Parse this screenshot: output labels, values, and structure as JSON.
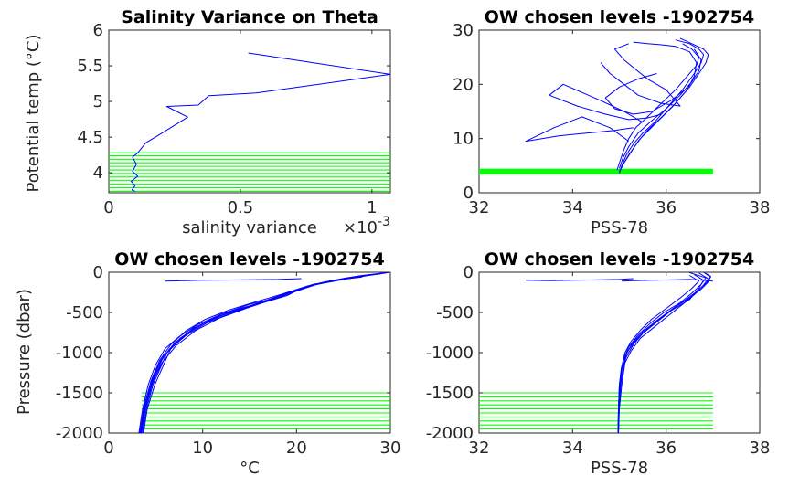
{
  "chart_data": [
    {
      "id": "p1",
      "type": "line",
      "title": "Salinity Variance on Theta",
      "xlabel": "salinity variance",
      "ylabel": "Potential temp (°C)",
      "x_exponent_label": "×10",
      "x_exponent": "-3",
      "xlim": [
        0,
        0.00107
      ],
      "ylim": [
        3.72,
        6
      ],
      "xticks": [
        0,
        0.0005,
        0.001
      ],
      "xticklabels": [
        "0",
        "0.5",
        "1"
      ],
      "yticks": [
        4,
        4.5,
        5,
        5.5,
        6
      ],
      "yticklabels": [
        "4",
        "4.5",
        "5",
        "5.5",
        "6"
      ],
      "series": [
        {
          "color": "#0000ff",
          "x": [
            0.00053,
            0.00107,
            0.00056,
            0.00038,
            0.00034,
            0.00022,
            0.0003,
            0.00019,
            0.00014,
            0.00011,
            9e-05,
            0.000105,
            9e-05,
            0.00011,
            8.5e-05,
            0.0001,
            8.8e-05,
            0.0001
          ],
          "y": [
            5.68,
            5.38,
            5.12,
            5.08,
            4.95,
            4.93,
            4.78,
            4.53,
            4.42,
            4.28,
            4.22,
            4.12,
            4.02,
            3.95,
            3.88,
            3.82,
            3.76,
            3.74
          ]
        }
      ],
      "hlines": {
        "color": "#00ff00",
        "x_from": 0,
        "x_to": 0.00107,
        "y": [
          3.74,
          3.79,
          3.84,
          3.89,
          3.94,
          3.99,
          4.04,
          4.09,
          4.14,
          4.19,
          4.24,
          4.28
        ]
      }
    },
    {
      "id": "p2",
      "type": "line",
      "title": "OW chosen levels -1902754",
      "xlabel": "PSS-78",
      "ylabel": "",
      "xlim": [
        32,
        38
      ],
      "ylim": [
        0,
        30
      ],
      "xticks": [
        32,
        34,
        36,
        38
      ],
      "xticklabels": [
        "32",
        "34",
        "36",
        "38"
      ],
      "yticks": [
        0,
        10,
        20,
        30
      ],
      "yticklabels": [
        "0",
        "10",
        "20",
        "30"
      ],
      "series": [
        {
          "color": "#0000ff",
          "x": [
            35.0,
            35.05,
            35.15,
            35.3,
            35.5,
            35.75,
            36.05,
            36.35,
            36.6,
            36.75,
            36.8,
            36.7,
            36.5,
            36.2
          ],
          "y": [
            3.6,
            5,
            7,
            9,
            11,
            13,
            16,
            19,
            22,
            24,
            25.5,
            26.5,
            27.5,
            28.2
          ]
        },
        {
          "color": "#0000ff",
          "x": [
            35.0,
            35.1,
            35.25,
            35.4,
            35.6,
            35.85,
            36.2,
            36.5,
            36.7,
            36.85,
            36.9,
            36.8,
            36.55,
            36.3
          ],
          "y": [
            3.8,
            5.5,
            7.5,
            9.5,
            11.5,
            13.5,
            16.5,
            19.5,
            22,
            24,
            25.5,
            26.5,
            27.5,
            28.5
          ]
        },
        {
          "color": "#0000ff",
          "x": [
            34.95,
            35.02,
            35.1,
            35.2,
            35.35,
            35.6,
            35.9,
            36.2,
            36.45,
            36.65,
            36.7,
            36.55,
            36.35
          ],
          "y": [
            4.2,
            6,
            8,
            10,
            12,
            14,
            16.5,
            19,
            21.5,
            23.5,
            25,
            26.5,
            27.5
          ]
        },
        {
          "color": "#0000ff",
          "x": [
            35.0,
            35.2,
            35.45,
            35.8,
            36.15,
            36.45,
            36.6,
            36.65,
            36.5,
            36.2,
            35.9,
            35.6,
            35.3
          ],
          "y": [
            4,
            7,
            10,
            13,
            16,
            19,
            21.5,
            24,
            26,
            27,
            27.3,
            27.5,
            27.8
          ]
        },
        {
          "color": "#0000ff",
          "x": [
            35.0,
            35.08,
            35.2,
            35.4,
            35.65,
            36.0,
            36.3,
            36.55,
            36.7,
            36.75,
            36.6
          ],
          "y": [
            4.5,
            6.5,
            8.5,
            11,
            13,
            15.5,
            18,
            20.5,
            22.5,
            24.5,
            26.5
          ]
        },
        {
          "color": "#0000ff",
          "x": [
            35.2,
            34.8,
            34.2,
            33.6,
            33.0,
            33.7,
            34.3,
            34.9,
            35.3
          ],
          "y": [
            9.5,
            12,
            14,
            12,
            9.5,
            10.5,
            11,
            11.5,
            12
          ]
        },
        {
          "color": "#0000ff",
          "x": [
            35.5,
            35.1,
            34.6,
            34.2,
            33.8,
            33.5,
            34.1,
            34.7,
            35.2,
            35.6,
            35.9
          ],
          "y": [
            13,
            15,
            17,
            18.5,
            20,
            18,
            16,
            14.5,
            13.5,
            13.8,
            14.5
          ]
        },
        {
          "color": "#0000ff",
          "x": [
            35.2,
            34.9,
            35.1,
            35.6,
            36.0,
            36.3,
            35.9,
            35.4,
            35.1,
            34.8,
            34.6
          ],
          "y": [
            27.5,
            26.5,
            24.5,
            21,
            19,
            16,
            16.5,
            18,
            20,
            22,
            24
          ]
        },
        {
          "color": "#0000ff",
          "x": [
            35.8,
            35.4,
            35.0,
            34.7,
            34.9,
            35.3,
            35.7,
            36.1,
            36.4
          ],
          "y": [
            22,
            21,
            19.5,
            17.5,
            15.5,
            14.5,
            15,
            17,
            19
          ]
        }
      ],
      "hlines": {
        "color": "#00ff00",
        "x_from": 32,
        "x_to": 37,
        "y": [
          3.5,
          3.7,
          3.9,
          4.1,
          4.3
        ]
      }
    },
    {
      "id": "p3",
      "type": "line",
      "title": "OW chosen levels -1902754",
      "xlabel": "°C",
      "ylabel": "Pressure (dbar)",
      "xlim": [
        0,
        30
      ],
      "ylim": [
        -2000,
        0
      ],
      "xticks": [
        0,
        10,
        20,
        30
      ],
      "xticklabels": [
        "0",
        "10",
        "20",
        "30"
      ],
      "yticks": [
        -2000,
        -1500,
        -1000,
        -500,
        0
      ],
      "yticklabels": [
        "-2000",
        "-1500",
        "-1000",
        "-500",
        "0"
      ],
      "series": [
        {
          "color": "#0000ff",
          "x": [
            3.2,
            3.6,
            4.2,
            5.0,
            6.0,
            7.5,
            9.5,
            12.0,
            15.0,
            18.0,
            21.0,
            24.5,
            28.0
          ],
          "y": [
            -2000,
            -1700,
            -1400,
            -1150,
            -950,
            -800,
            -650,
            -520,
            -420,
            -300,
            -180,
            -90,
            -30
          ]
        },
        {
          "color": "#0000ff",
          "x": [
            3.3,
            3.7,
            4.4,
            5.3,
            6.5,
            8.3,
            10.6,
            13.4,
            16.3,
            18.8,
            21.8,
            25.3,
            29.0
          ],
          "y": [
            -2000,
            -1700,
            -1400,
            -1150,
            -950,
            -780,
            -620,
            -490,
            -380,
            -260,
            -150,
            -70,
            -15
          ]
        },
        {
          "color": "#0000ff",
          "x": [
            3.4,
            3.8,
            4.5,
            5.5,
            7.0,
            9.0,
            11.5,
            14.5,
            17.5,
            19.5,
            22.5,
            26.0,
            29.5
          ],
          "y": [
            -2000,
            -1700,
            -1400,
            -1100,
            -880,
            -700,
            -560,
            -440,
            -340,
            -240,
            -140,
            -60,
            -10
          ]
        },
        {
          "color": "#0000ff",
          "x": [
            3.5,
            3.9,
            4.6,
            5.8,
            7.6,
            10.0,
            12.8,
            15.8,
            18.3,
            20.0,
            23.0,
            26.5,
            29.8
          ],
          "y": [
            -2000,
            -1700,
            -1400,
            -1050,
            -820,
            -640,
            -500,
            -400,
            -310,
            -220,
            -120,
            -50,
            -5
          ]
        },
        {
          "color": "#0000ff",
          "x": [
            3.6,
            4.0,
            4.7,
            6.2,
            8.3,
            11.0,
            14.0,
            17.0,
            19.0,
            20.5,
            23.5,
            27.0,
            30.0
          ],
          "y": [
            -2000,
            -1700,
            -1400,
            -1000,
            -760,
            -580,
            -450,
            -360,
            -290,
            -200,
            -110,
            -40,
            0
          ]
        },
        {
          "color": "#0000ff",
          "x": [
            3.3,
            3.8,
            4.5,
            5.4,
            6.6,
            8.2,
            10.2,
            12.8,
            15.6,
            18.5,
            21.2,
            24.0,
            27.0
          ],
          "y": [
            -2000,
            -1650,
            -1350,
            -1100,
            -900,
            -730,
            -590,
            -470,
            -370,
            -270,
            -170,
            -100,
            -60
          ]
        },
        {
          "color": "#0000ff",
          "x": [
            3.7,
            4.1,
            4.9,
            6.6,
            9.0,
            12.0,
            15.0,
            17.8,
            19.6,
            21.5,
            24.5,
            27.5,
            29.0
          ],
          "y": [
            -2000,
            -1700,
            -1400,
            -950,
            -700,
            -520,
            -400,
            -320,
            -250,
            -170,
            -90,
            -40,
            -20
          ]
        },
        {
          "color": "#0000ff",
          "x": [
            3.4,
            3.9,
            4.6,
            5.7,
            7.2,
            9.3,
            11.8,
            14.6,
            17.2,
            19.6,
            22.2,
            25.5,
            28.5
          ],
          "y": [
            -2000,
            -1680,
            -1380,
            -1120,
            -910,
            -720,
            -570,
            -450,
            -350,
            -250,
            -150,
            -80,
            -25
          ]
        },
        {
          "color": "#0000ff",
          "x": [
            6.0,
            10.0,
            14.0,
            18.0,
            20.5
          ],
          "y": [
            -110,
            -100,
            -95,
            -90,
            -80
          ]
        }
      ],
      "hlines": {
        "color": "#00ff00",
        "x_from": 3.5,
        "x_to": 30,
        "y": [
          -1500,
          -1550,
          -1600,
          -1650,
          -1700,
          -1750,
          -1800,
          -1850,
          -1900,
          -1950
        ]
      }
    },
    {
      "id": "p4",
      "type": "line",
      "title": "OW chosen levels -1902754",
      "xlabel": "PSS-78",
      "ylabel": "",
      "xlim": [
        32,
        38
      ],
      "ylim": [
        -2000,
        0
      ],
      "xticks": [
        32,
        34,
        36,
        38
      ],
      "xticklabels": [
        "32",
        "34",
        "36",
        "38"
      ],
      "yticks": [
        -2000,
        -1500,
        -1000,
        -500,
        0
      ],
      "yticklabels": [
        "-2000",
        "-1500",
        "-1000",
        "-500",
        "0"
      ],
      "series": [
        {
          "color": "#0000ff",
          "x": [
            34.98,
            34.98,
            35.0,
            35.05,
            35.15,
            35.3,
            35.5,
            35.8,
            36.1,
            36.5,
            36.7,
            36.8,
            36.6
          ],
          "y": [
            -2000,
            -1700,
            -1400,
            -1200,
            -1050,
            -900,
            -760,
            -620,
            -480,
            -340,
            -200,
            -100,
            -30
          ]
        },
        {
          "color": "#0000ff",
          "x": [
            34.98,
            34.99,
            35.02,
            35.1,
            35.25,
            35.45,
            35.75,
            36.05,
            36.35,
            36.6,
            36.8,
            36.9,
            36.7
          ],
          "y": [
            -2000,
            -1700,
            -1400,
            -1150,
            -980,
            -820,
            -680,
            -540,
            -400,
            -280,
            -160,
            -80,
            -10
          ]
        },
        {
          "color": "#0000ff",
          "x": [
            34.97,
            34.98,
            35.01,
            35.08,
            35.2,
            35.4,
            35.65,
            35.95,
            36.3,
            36.55,
            36.75,
            36.85,
            36.5
          ],
          "y": [
            -2000,
            -1700,
            -1400,
            -1100,
            -930,
            -780,
            -640,
            -500,
            -380,
            -260,
            -150,
            -70,
            -5
          ]
        },
        {
          "color": "#0000ff",
          "x": [
            34.98,
            34.99,
            35.03,
            35.12,
            35.28,
            35.5,
            35.8,
            36.1,
            36.4,
            36.65,
            36.85,
            36.95,
            36.8
          ],
          "y": [
            -2000,
            -1700,
            -1400,
            -1050,
            -880,
            -740,
            -600,
            -470,
            -350,
            -240,
            -140,
            -60,
            0
          ]
        },
        {
          "color": "#0000ff",
          "x": [
            34.97,
            34.98,
            35.0,
            35.04,
            35.12,
            35.25,
            35.45,
            35.7,
            36.0,
            36.3,
            36.55,
            36.7,
            36.5
          ],
          "y": [
            -2000,
            -1700,
            -1400,
            -1200,
            -1000,
            -860,
            -720,
            -580,
            -450,
            -320,
            -200,
            -110,
            -40
          ]
        },
        {
          "color": "#0000ff",
          "x": [
            34.98,
            35.0,
            35.05,
            35.15,
            35.35,
            35.6,
            35.9,
            36.2,
            36.5,
            36.75,
            36.9,
            36.95,
            36.85
          ],
          "y": [
            -2000,
            -1700,
            -1400,
            -1000,
            -850,
            -700,
            -560,
            -430,
            -320,
            -210,
            -120,
            -50,
            -15
          ]
        },
        {
          "color": "#0000ff",
          "x": [
            35.05,
            35.3,
            35.7,
            36.1,
            36.5,
            36.8,
            37.0
          ],
          "y": [
            -110,
            -105,
            -100,
            -95,
            -90,
            -100,
            -110
          ]
        },
        {
          "color": "#0000ff",
          "x": [
            33.0,
            33.5,
            34.0,
            34.5,
            35.0,
            35.3
          ],
          "y": [
            -100,
            -105,
            -100,
            -95,
            -90,
            -80
          ]
        }
      ],
      "hlines": {
        "color": "#00ff00",
        "x_from": 32,
        "x_to": 37,
        "y": [
          -1500,
          -1550,
          -1600,
          -1650,
          -1700,
          -1750,
          -1800,
          -1850,
          -1900,
          -1950
        ]
      }
    }
  ]
}
